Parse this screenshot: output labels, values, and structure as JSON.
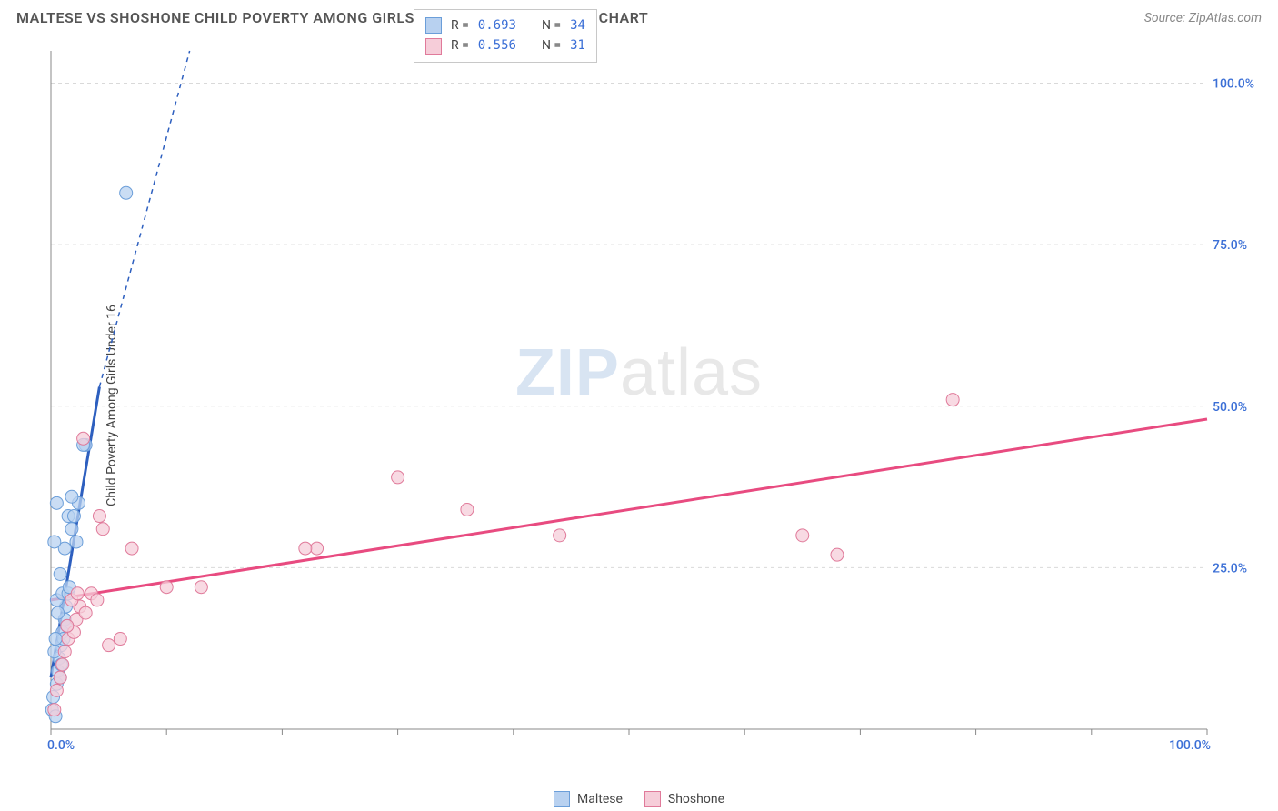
{
  "header": {
    "title": "MALTESE VS SHOSHONE CHILD POVERTY AMONG GIRLS UNDER 16 CORRELATION CHART",
    "source": "Source: ZipAtlas.com"
  },
  "watermark": {
    "part1": "ZIP",
    "part2": "atlas"
  },
  "chart": {
    "type": "scatter",
    "y_label": "Child Poverty Among Girls Under 16",
    "background_color": "#ffffff",
    "grid_color": "#d9d9d9",
    "axis_color": "#888888",
    "tick_label_color": "#3b6fd6",
    "xlim": [
      0,
      100
    ],
    "ylim": [
      0,
      105
    ],
    "x_ticks": [
      0,
      10,
      20,
      30,
      40,
      50,
      60,
      70,
      80,
      90,
      100
    ],
    "y_gridlines": [
      25,
      50,
      75,
      100
    ],
    "x_tick_labels": {
      "0": "0.0%",
      "100": "100.0%"
    },
    "y_tick_labels": {
      "25": "25.0%",
      "50": "50.0%",
      "75": "75.0%",
      "100": "100.0%"
    },
    "series": [
      {
        "name": "Maltese",
        "color_fill": "#b8d1f0",
        "color_stroke": "#6b9ed9",
        "marker_radius": 7,
        "regression": {
          "color": "#2d5fbf",
          "width": 3,
          "x1": 0,
          "y1": 8,
          "x2": 4.2,
          "y2": 53,
          "dash_extend_x2": 12,
          "dash_extend_y2": 135
        },
        "stats": {
          "R": "0.693",
          "N": "34"
        },
        "points": [
          [
            0.1,
            3
          ],
          [
            0.2,
            5
          ],
          [
            0.4,
            2
          ],
          [
            0.5,
            7
          ],
          [
            0.6,
            9
          ],
          [
            0.7,
            11
          ],
          [
            0.8,
            8
          ],
          [
            0.9,
            13
          ],
          [
            1.0,
            15
          ],
          [
            1.1,
            14
          ],
          [
            1.2,
            17
          ],
          [
            1.3,
            19
          ],
          [
            1.4,
            16
          ],
          [
            0.5,
            20
          ],
          [
            1.0,
            21
          ],
          [
            1.5,
            21
          ],
          [
            1.6,
            22
          ],
          [
            0.8,
            24
          ],
          [
            1.2,
            28
          ],
          [
            0.3,
            29
          ],
          [
            1.8,
            31
          ],
          [
            1.5,
            33
          ],
          [
            2.0,
            33
          ],
          [
            2.4,
            35
          ],
          [
            0.5,
            35
          ],
          [
            1.8,
            36
          ],
          [
            2.2,
            29
          ],
          [
            3.0,
            44
          ],
          [
            2.8,
            44
          ],
          [
            6.5,
            83
          ],
          [
            0.3,
            12
          ],
          [
            0.9,
            10
          ],
          [
            0.4,
            14
          ],
          [
            0.6,
            18
          ]
        ]
      },
      {
        "name": "Shoshone",
        "color_fill": "#f6cdd9",
        "color_stroke": "#e07a9a",
        "marker_radius": 7,
        "regression": {
          "color": "#e84b80",
          "width": 3,
          "x1": 0,
          "y1": 20,
          "x2": 100,
          "y2": 48
        },
        "stats": {
          "R": "0.556",
          "N": "31"
        },
        "points": [
          [
            0.3,
            3
          ],
          [
            0.5,
            6
          ],
          [
            0.8,
            8
          ],
          [
            1.0,
            10
          ],
          [
            1.2,
            12
          ],
          [
            1.5,
            14
          ],
          [
            2.0,
            15
          ],
          [
            2.2,
            17
          ],
          [
            2.5,
            19
          ],
          [
            3.0,
            18
          ],
          [
            1.8,
            20
          ],
          [
            2.3,
            21
          ],
          [
            3.5,
            21
          ],
          [
            4.0,
            20
          ],
          [
            5.0,
            13
          ],
          [
            6.0,
            14
          ],
          [
            4.5,
            31
          ],
          [
            4.2,
            33
          ],
          [
            10.0,
            22
          ],
          [
            13.0,
            22
          ],
          [
            7.0,
            28
          ],
          [
            23.0,
            28
          ],
          [
            22.0,
            28
          ],
          [
            30.0,
            39
          ],
          [
            36.0,
            34
          ],
          [
            44.0,
            30
          ],
          [
            65.0,
            30
          ],
          [
            68.0,
            27
          ],
          [
            78.0,
            51
          ],
          [
            2.8,
            45
          ],
          [
            1.4,
            16
          ]
        ]
      }
    ]
  },
  "legend_top": {
    "r_label": "R =",
    "n_label": "N ="
  },
  "bottom_legend": {
    "items": [
      "Maltese",
      "Shoshone"
    ]
  }
}
